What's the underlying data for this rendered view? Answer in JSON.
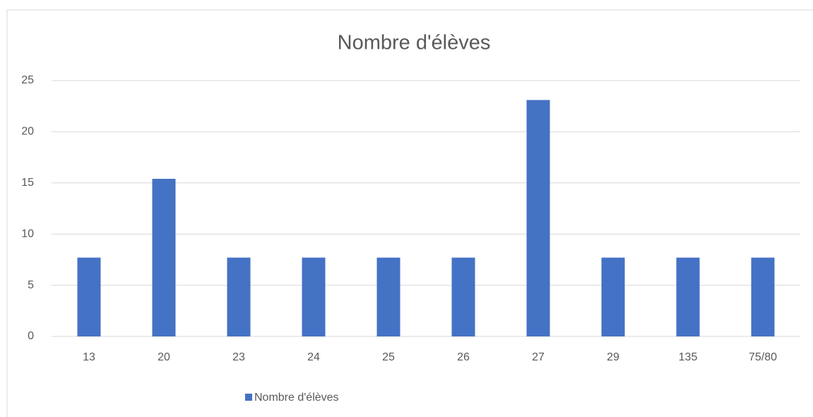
{
  "chart_data": {
    "type": "bar",
    "title": "Nombre d'élèves",
    "categories": [
      "13",
      "20",
      "23",
      "24",
      "25",
      "26",
      "27",
      "29",
      "135",
      "75/80"
    ],
    "series": [
      {
        "name": "Nombre d'élèves",
        "color": "#4472c4",
        "values": [
          7.7,
          15.4,
          7.7,
          7.7,
          7.7,
          7.7,
          23.1,
          7.7,
          7.7,
          7.7
        ]
      }
    ],
    "ylim": [
      0,
      25
    ],
    "yticks": [
      0,
      5,
      10,
      15,
      20,
      25
    ],
    "grid": true,
    "legend": "bottom"
  }
}
